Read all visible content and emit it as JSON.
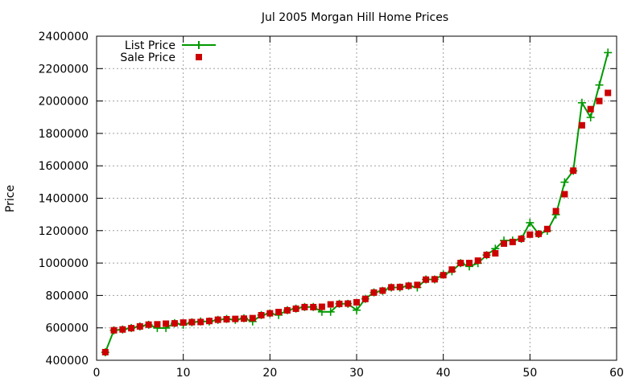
{
  "chart_data": {
    "type": "line",
    "title": "Jul 2005 Morgan Hill Home Prices",
    "xlabel": "",
    "ylabel": "Price",
    "xlim": [
      0,
      60
    ],
    "ylim": [
      400000,
      2400000
    ],
    "xticks": [
      0,
      10,
      20,
      30,
      40,
      50,
      60
    ],
    "yticks": [
      400000,
      600000,
      800000,
      1000000,
      1200000,
      1400000,
      1600000,
      1800000,
      2000000,
      2200000,
      2400000
    ],
    "xtick_labels": [
      "0",
      "10",
      "20",
      "30",
      "40",
      "50",
      "60"
    ],
    "ytick_labels": [
      "400000",
      "600000",
      "800000",
      "1000000",
      "1200000",
      "1400000",
      "1600000",
      "1800000",
      "2000000",
      "2200000",
      "2400000"
    ],
    "grid": true,
    "legend_position": "top-left",
    "x": [
      1,
      2,
      3,
      4,
      5,
      6,
      7,
      8,
      9,
      10,
      11,
      12,
      13,
      14,
      15,
      16,
      17,
      18,
      19,
      20,
      21,
      22,
      23,
      24,
      25,
      26,
      27,
      28,
      29,
      30,
      31,
      32,
      33,
      34,
      35,
      36,
      37,
      38,
      39,
      40,
      41,
      42,
      43,
      44,
      45,
      46,
      47,
      48,
      49,
      50,
      51,
      52,
      53,
      54,
      55,
      56,
      57,
      58,
      59
    ],
    "series": [
      {
        "name": "List Price",
        "style": "line-plus",
        "color": "#009900",
        "values": [
          449000,
          585000,
          590000,
          599000,
          609000,
          619000,
          599000,
          599000,
          629000,
          619000,
          634000,
          639000,
          639000,
          649000,
          655000,
          649000,
          659000,
          639000,
          679000,
          689000,
          679000,
          709000,
          719000,
          729000,
          729000,
          699000,
          699000,
          749000,
          749000,
          709000,
          779000,
          819000,
          829000,
          849000,
          849000,
          859000,
          849000,
          899000,
          899000,
          929000,
          949000,
          999000,
          979000,
          999000,
          1049000,
          1089000,
          1139000,
          1139000,
          1149000,
          1249000,
          1179000,
          1199000,
          1299000,
          1499000,
          1569000,
          1989000,
          1899000,
          2099000,
          2299000
        ]
      },
      {
        "name": "Sale Price",
        "style": "square-markers",
        "color": "#cc0000",
        "values": [
          450000,
          585000,
          590000,
          598000,
          609000,
          620000,
          622000,
          626000,
          628000,
          633000,
          635000,
          636000,
          642000,
          650000,
          653000,
          655000,
          657000,
          660000,
          678000,
          690000,
          698000,
          708000,
          718000,
          728000,
          728000,
          730000,
          745000,
          748000,
          750000,
          758000,
          778000,
          818000,
          830000,
          850000,
          852000,
          860000,
          865000,
          898000,
          900000,
          925000,
          960000,
          1000000,
          1000000,
          1015000,
          1050000,
          1060000,
          1120000,
          1130000,
          1150000,
          1175000,
          1180000,
          1210000,
          1320000,
          1425000,
          1570000,
          1850000,
          1950000,
          2000000,
          2050000
        ]
      }
    ]
  }
}
